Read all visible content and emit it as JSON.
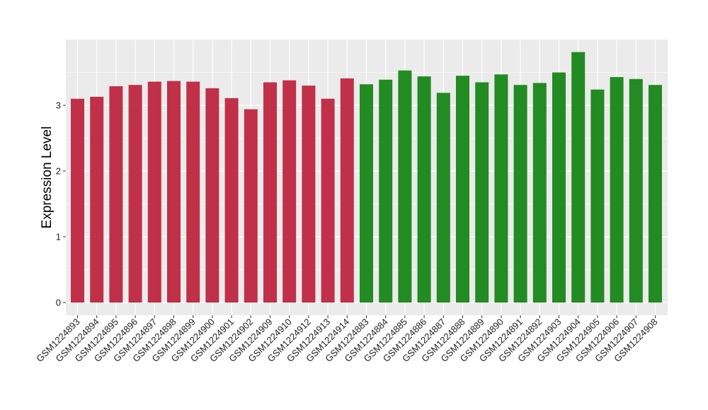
{
  "chart_data": {
    "type": "bar",
    "title": "",
    "xlabel": "",
    "ylabel": "Expression Level",
    "ylim": [
      0,
      3.95
    ],
    "yticks": [
      0,
      1,
      2,
      3
    ],
    "grid": true,
    "legend": "none",
    "categories": [
      "GSM1224893",
      "GSM1224894",
      "GSM1224895",
      "GSM1224896",
      "GSM1224897",
      "GSM1224898",
      "GSM1224899",
      "GSM1224900",
      "GSM1224901",
      "GSM1224902",
      "GSM1224909",
      "GSM1224910",
      "GSM1224912",
      "GSM1224913",
      "GSM1224914",
      "GSM1224883",
      "GSM1224884",
      "GSM1224885",
      "GSM1224886",
      "GSM1224887",
      "GSM1224888",
      "GSM1224889",
      "GSM1224890",
      "GSM1224891",
      "GSM1224892",
      "GSM1224903",
      "GSM1224904",
      "GSM1224905",
      "GSM1224906",
      "GSM1224907",
      "GSM1224908"
    ],
    "values": [
      3.1,
      3.13,
      3.29,
      3.31,
      3.36,
      3.37,
      3.36,
      3.26,
      3.11,
      2.94,
      3.35,
      3.38,
      3.3,
      3.1,
      3.41,
      3.32,
      3.39,
      3.53,
      3.44,
      3.19,
      3.45,
      3.35,
      3.47,
      3.31,
      3.34,
      3.5,
      3.81,
      3.24,
      3.43,
      3.4,
      3.31
    ],
    "groups": [
      0,
      0,
      0,
      0,
      0,
      0,
      0,
      0,
      0,
      0,
      0,
      0,
      0,
      0,
      0,
      1,
      1,
      1,
      1,
      1,
      1,
      1,
      1,
      1,
      1,
      1,
      1,
      1,
      1,
      1,
      1
    ],
    "colors": {
      "group_0": "#c03048",
      "group_1": "#228b22",
      "panel": "#ebebeb",
      "grid": "#ffffff"
    }
  }
}
